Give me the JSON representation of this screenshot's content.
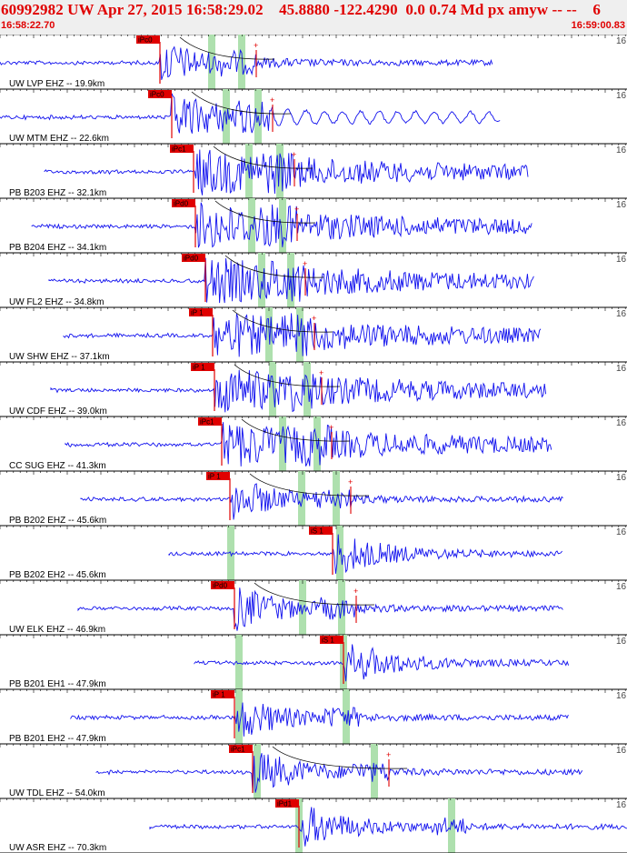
{
  "header": {
    "title": "60992982 UW Apr 27, 2015 16:58:29.02    45.8880 -122.4290  0.0 0.74 Md px amyw -- --    6",
    "start_time": "16:58:22.70",
    "end_time": "16:59:00.83"
  },
  "colors": {
    "trace": "#1010ee",
    "pick": "#e00000",
    "window": "#aee0ae",
    "header_bg": "#efefef"
  },
  "edge_label": "16",
  "stations": [
    {
      "label": "UW LVP EHZ -- 19.9km",
      "pick": "iPc0",
      "pickx": 176,
      "phase_marker": "+",
      "win1": 229,
      "win2": 262,
      "end": 542,
      "tail": "decay"
    },
    {
      "label": "UW MTM EHZ -- 22.6km",
      "pick": "iPc0",
      "pickx": 189,
      "phase_marker": "+",
      "win1": 245,
      "win2": 280,
      "end": 551,
      "tail": "wave"
    },
    {
      "label": "PB B203 EHZ -- 32.1km",
      "pick": "iPc1",
      "pickx": 213,
      "phase_marker": "+",
      "win1": 270,
      "win2": 304,
      "end": 581,
      "tail": "noisy"
    },
    {
      "label": "PB B204 EHZ -- 34.1km",
      "pick": "iPd0",
      "pickx": 215,
      "phase_marker": "+",
      "win1": 273,
      "win2": 307,
      "end": 586,
      "tail": "noisy"
    },
    {
      "label": "UW FL2 EHZ -- 34.8km",
      "pick": "iPd0",
      "pickx": 226,
      "phase_marker": "+",
      "win1": 284,
      "win2": 316,
      "end": 588,
      "tail": "noisy"
    },
    {
      "label": "UW SHW EHZ -- 37.1km",
      "pick": "iP 1",
      "pickx": 234,
      "phase_marker": "+",
      "win1": 292,
      "win2": 326,
      "end": 596,
      "tail": "noisy"
    },
    {
      "label": "UW CDF EHZ -- 39.0km",
      "pick": "iP 1",
      "pickx": 236,
      "phase_marker": "+",
      "win1": 296,
      "win2": 334,
      "end": 601,
      "tail": "noisy"
    },
    {
      "label": "CC SUG EHZ -- 41.3km",
      "pick": "iPc1",
      "pickx": 244,
      "phase_marker": "+",
      "win1": 307,
      "win2": 345,
      "end": 607,
      "tail": "noisy"
    },
    {
      "label": "PB B202 EHZ -- 45.6km",
      "pick": "iP 1",
      "pickx": 253,
      "phase_marker": "+",
      "win1": 328,
      "win2": 366,
      "end": 620,
      "tail": "decay"
    },
    {
      "label": "PB B202 EH2 -- 45.6km",
      "pick": "iS 1",
      "pickx": 366,
      "phase_marker": "",
      "win1": 250,
      "win2": 370,
      "end": 619,
      "tail": "decay"
    },
    {
      "label": "UW ELK EHZ -- 46.9km",
      "pick": "iPd0",
      "pickx": 258,
      "phase_marker": "+",
      "win1": 329,
      "win2": 372,
      "end": 620,
      "tail": "decay"
    },
    {
      "label": "PB B201 EH1 -- 47.9km",
      "pick": "iS 1",
      "pickx": 378,
      "phase_marker": "",
      "win1": 259,
      "win2": 374,
      "end": 626,
      "tail": "decay"
    },
    {
      "label": "PB B201 EH2 -- 47.9km",
      "pick": "iP 1",
      "pickx": 258,
      "phase_marker": "",
      "win1": 259,
      "win2": 377,
      "end": 626,
      "tail": "decay"
    },
    {
      "label": "UW TDL EHZ -- 54.0km",
      "pick": "iPc1",
      "pickx": 278,
      "phase_marker": "+",
      "win1": 279,
      "win2": 408,
      "end": 642,
      "tail": "decay"
    },
    {
      "label": "UW ASR EHZ -- 70.3km",
      "pick": "iPd1",
      "pickx": 329,
      "phase_marker": "",
      "win1": 325,
      "win2": 493,
      "end": 690,
      "tail": "decay"
    }
  ]
}
